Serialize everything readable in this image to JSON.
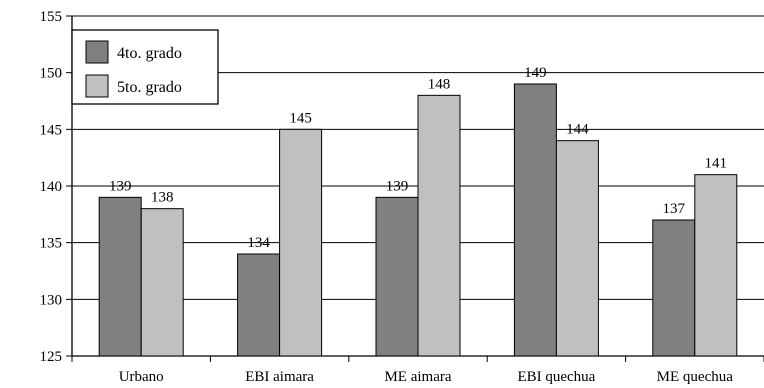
{
  "chart_data": {
    "type": "bar",
    "categories": [
      "Urbano",
      "EBI aimara",
      "ME aimara",
      "EBI quechua",
      "ME quechua"
    ],
    "series": [
      {
        "name": "4to. grado",
        "values": [
          139,
          134,
          139,
          149,
          137
        ],
        "color": "#808080"
      },
      {
        "name": "5to. grado",
        "values": [
          138,
          145,
          148,
          144,
          141
        ],
        "color": "#c0c0c0"
      }
    ],
    "ylim": [
      125,
      155
    ],
    "yticks": [
      "125",
      "130",
      "135",
      "140",
      "145",
      "150",
      "155"
    ],
    "grid": true,
    "legend_position": "top-left",
    "title": "",
    "xlabel": "",
    "ylabel": ""
  }
}
